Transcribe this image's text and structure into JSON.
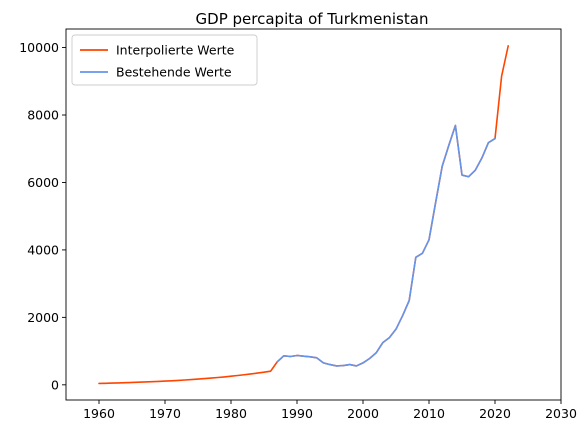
{
  "chart_data": {
    "type": "line",
    "title": "GDP percapita of Turkmenistan",
    "xlabel": "",
    "ylabel": "",
    "xlim": [
      1955,
      2030
    ],
    "ylim": [
      -450,
      10550
    ],
    "xticks": [
      1960,
      1970,
      1980,
      1990,
      2000,
      2010,
      2020,
      2030
    ],
    "yticks": [
      0,
      2000,
      4000,
      6000,
      8000,
      10000
    ],
    "grid": false,
    "legend_position": "top-left",
    "series": [
      {
        "name": "Interpolierte Werte",
        "color": "#ff4500",
        "x": [
          1960,
          1961,
          1962,
          1963,
          1964,
          1965,
          1966,
          1967,
          1968,
          1969,
          1970,
          1971,
          1972,
          1973,
          1974,
          1975,
          1976,
          1977,
          1978,
          1979,
          1980,
          1981,
          1982,
          1983,
          1984,
          1985,
          1986,
          1987,
          1988,
          1989,
          1990,
          1991,
          1992,
          1993,
          1994,
          1995,
          1996,
          1997,
          1998,
          1999,
          2000,
          2001,
          2002,
          2003,
          2004,
          2005,
          2006,
          2007,
          2008,
          2009,
          2010,
          2011,
          2012,
          2013,
          2014,
          2015,
          2016,
          2017,
          2018,
          2019,
          2020,
          2021,
          2022
        ],
        "y": [
          40,
          45,
          51,
          57,
          63,
          70,
          77,
          85,
          93,
          101,
          110,
          120,
          131,
          143,
          156,
          170,
          185,
          200,
          217,
          235,
          255,
          276,
          299,
          323,
          348,
          375,
          404,
          680,
          860,
          840,
          870,
          850,
          830,
          800,
          650,
          600,
          560,
          570,
          600,
          560,
          650,
          780,
          950,
          1250,
          1400,
          1650,
          2050,
          2500,
          3780,
          3900,
          4300,
          5400,
          6480,
          7100,
          7690,
          6220,
          6170,
          6360,
          6720,
          7180,
          7300,
          9150,
          10050
        ]
      },
      {
        "name": "Bestehende Werte",
        "color": "#6495ed",
        "x": [
          1987,
          1988,
          1989,
          1990,
          1991,
          1992,
          1993,
          1994,
          1995,
          1996,
          1997,
          1998,
          1999,
          2000,
          2001,
          2002,
          2003,
          2004,
          2005,
          2006,
          2007,
          2008,
          2009,
          2010,
          2011,
          2012,
          2013,
          2014,
          2015,
          2016,
          2017,
          2018,
          2019,
          2020
        ],
        "y": [
          680,
          860,
          840,
          870,
          850,
          830,
          800,
          650,
          600,
          560,
          570,
          600,
          560,
          650,
          780,
          950,
          1250,
          1400,
          1650,
          2050,
          2500,
          3780,
          3900,
          4300,
          5400,
          6480,
          7100,
          7690,
          6220,
          6170,
          6360,
          6720,
          7180,
          7300
        ]
      }
    ]
  }
}
